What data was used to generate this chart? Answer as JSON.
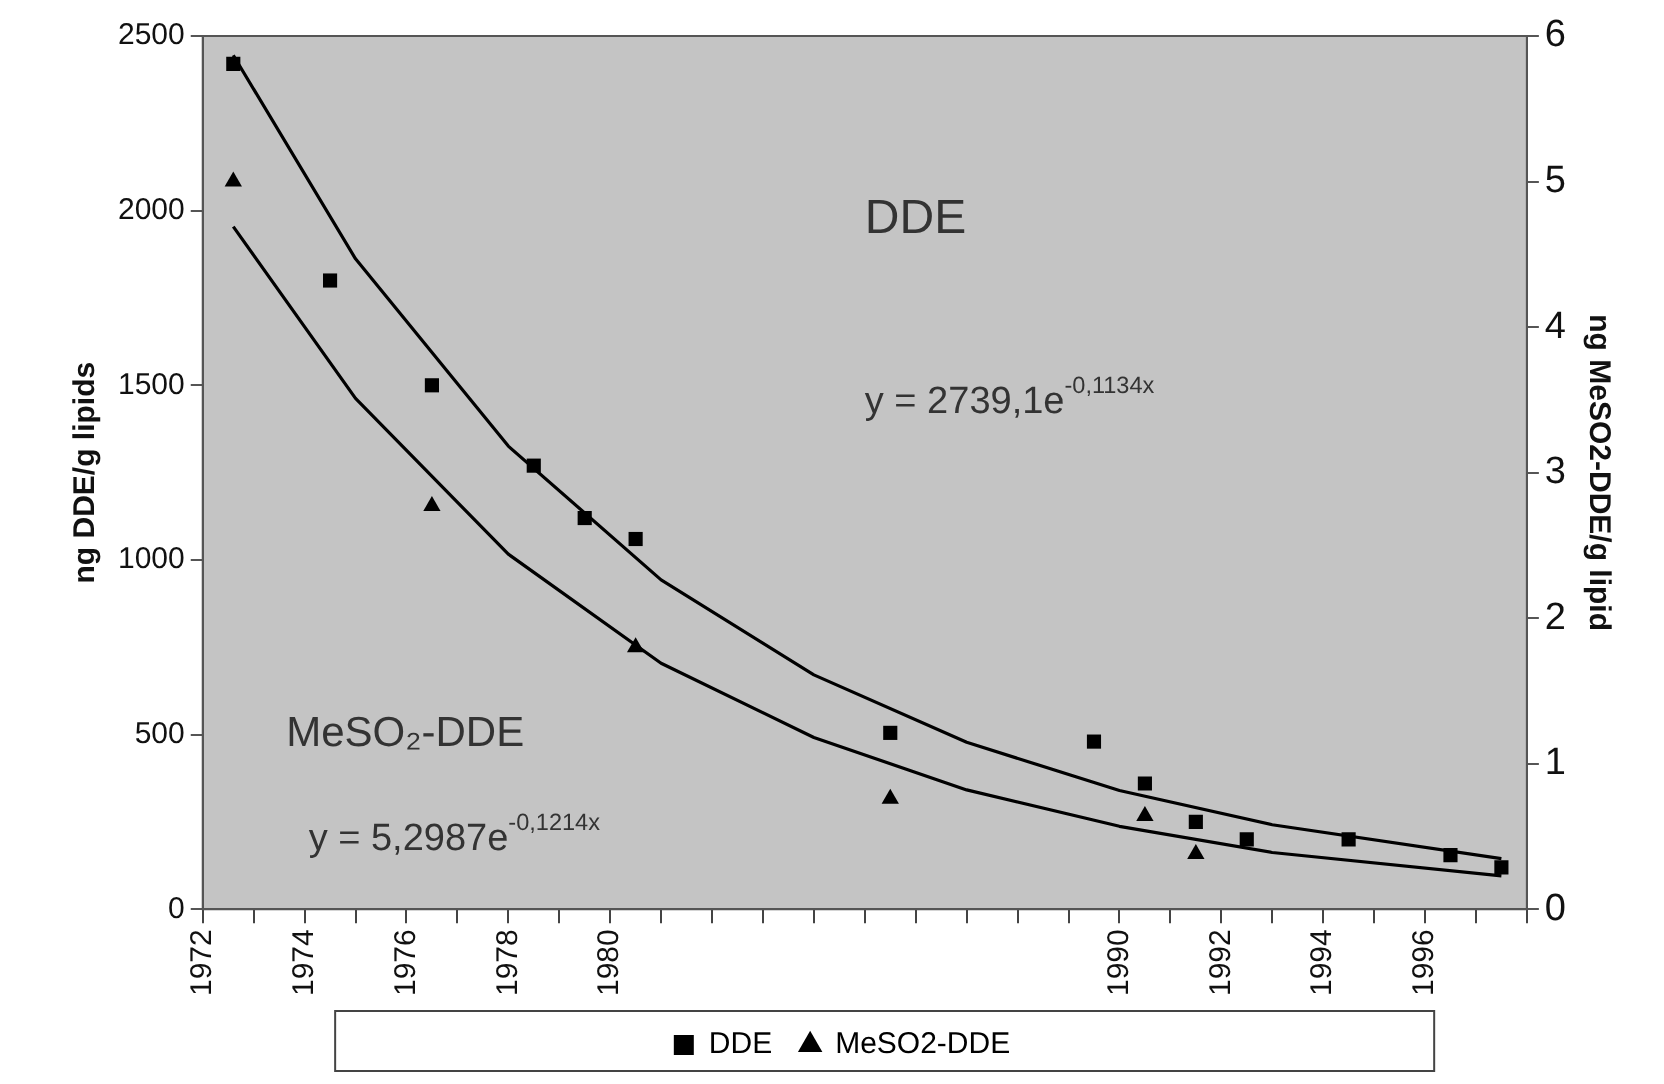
{
  "chart_data": {
    "type": "scatter",
    "xlim": [
      1972,
      1998
    ],
    "xticks": [
      1972,
      {
        "value": 1973,
        "label": null
      },
      1974,
      {
        "value": 1975,
        "label": null
      },
      1976,
      {
        "value": 1977,
        "label": null
      },
      1978,
      {
        "value": 1979,
        "label": null
      },
      1980,
      {
        "value": 1981,
        "label": null
      },
      {
        "value": 1982,
        "label": null
      },
      {
        "value": 1983,
        "label": null
      },
      {
        "value": 1984,
        "label": null
      },
      {
        "value": 1985,
        "label": null
      },
      {
        "value": 1986,
        "label": null
      },
      {
        "value": 1987,
        "label": null
      },
      {
        "value": 1988,
        "label": null
      },
      {
        "value": 1989,
        "label": null
      },
      1990,
      {
        "value": 1991,
        "label": null
      },
      1992,
      {
        "value": 1993,
        "label": null
      },
      1994,
      {
        "value": 1995,
        "label": null
      },
      1996,
      {
        "value": 1997,
        "label": null
      },
      {
        "value": 1998,
        "label": null
      }
    ],
    "ylim": [
      0,
      2500
    ],
    "yticks": [
      0,
      500,
      1000,
      1500,
      2000,
      2500
    ],
    "y2lim": [
      0,
      6
    ],
    "y2ticks": [
      0,
      1,
      2,
      3,
      4,
      5,
      6
    ],
    "ylabel": "ng DDE/g lipids",
    "y2label": "ng MeSO2-DDE/g lipid",
    "legend": "bottom",
    "annotations": [
      "DDE",
      "y = 2739,1e$^{-0,1134x}$",
      "MeSO₂-DDE",
      "y = 5,2987e$^{-0,1214x}$"
    ],
    "series": [
      {
        "name": "DDE",
        "color": "#000000",
        "marker": "square",
        "x": [
          1972.6,
          1974.5,
          1976.5,
          1978.5,
          1979.5,
          1980.5,
          1985.5,
          1989.5,
          1990.5,
          1991.5,
          1992.5,
          1994.5,
          1996.5,
          1997.5
        ],
        "values": [
          2420,
          1800,
          1500,
          1270,
          1120,
          1060,
          505,
          480,
          360,
          250,
          200,
          200,
          155,
          120
        ]
      },
      {
        "name": "MeSO2-DDE",
        "color": "#000000",
        "marker": "triangle",
        "axis": "y2",
        "x": [
          1972.6,
          1976.5,
          1980.5,
          1985.5,
          1990.5,
          1991.5
        ],
        "values": [
          5.0,
          2.77,
          1.8,
          0.76,
          0.64,
          0.38
        ]
      },
      {
        "type": "line",
        "color": "#000000",
        "marker": "none",
        "x": [
          1972.6,
          1975,
          1978,
          1981,
          1984,
          1987,
          1990,
          1993,
          1997.5
        ],
        "values": [
          2445,
          1862,
          1326,
          943,
          671,
          478,
          340,
          242,
          145
        ]
      },
      {
        "type": "line",
        "color": "#000000",
        "marker": "none",
        "axis": "y2",
        "x": [
          1972.6,
          1975,
          1978,
          1981,
          1984,
          1987,
          1990,
          1993,
          1997.5
        ],
        "values": [
          4.69,
          3.51,
          2.44,
          1.69,
          1.18,
          0.82,
          0.57,
          0.39,
          0.23
        ]
      }
    ]
  }
}
